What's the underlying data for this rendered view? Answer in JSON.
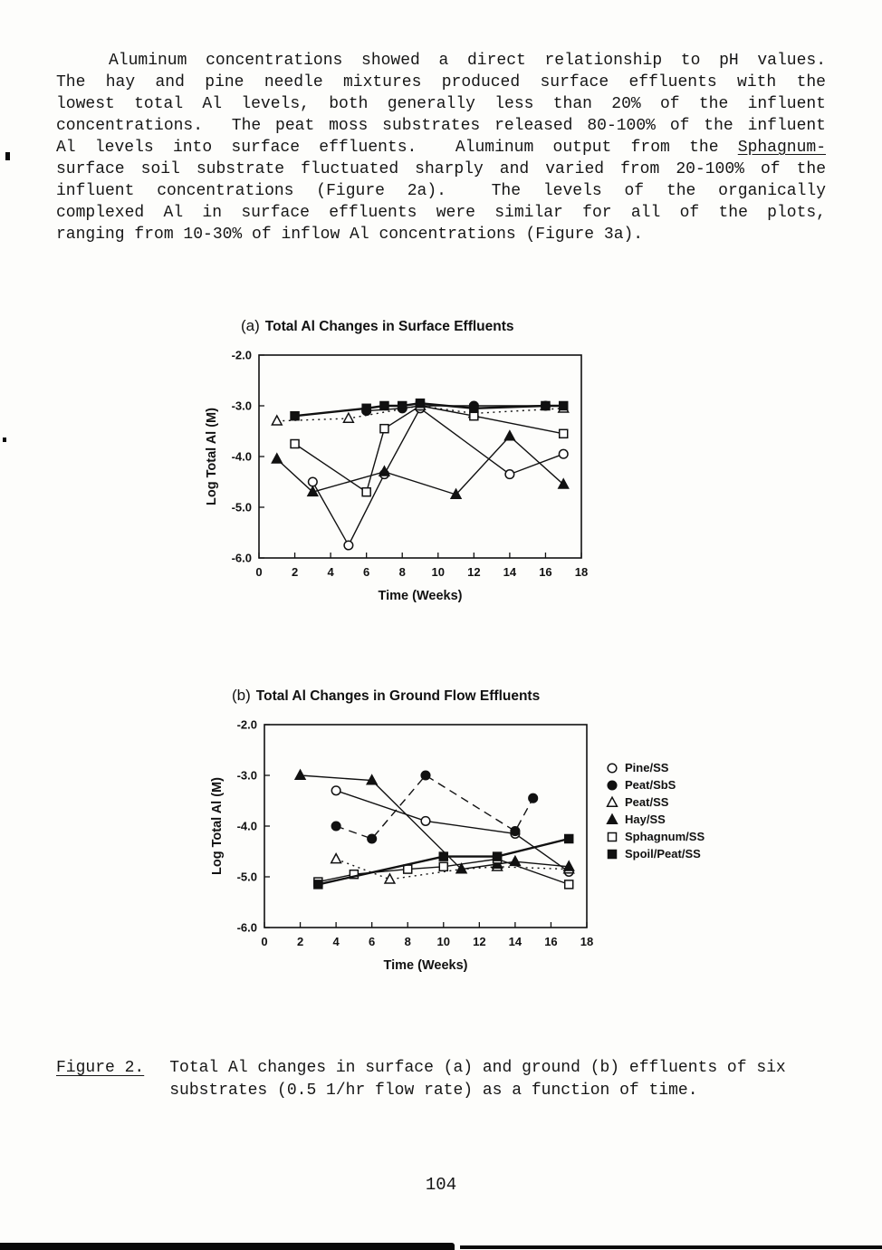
{
  "page": {
    "number": "104"
  },
  "paragraph": {
    "lines": [
      {
        "indent": true,
        "segments": [
          {
            "text": "Aluminum concentrations showed a direct relationship to pH values."
          }
        ]
      },
      {
        "segments": [
          {
            "text": "The hay and pine needle mixtures produced surface effluents with the"
          }
        ]
      },
      {
        "segments": [
          {
            "text": "lowest total Al levels, both generally less than 20% of the influent"
          }
        ]
      },
      {
        "segments": [
          {
            "text": "concentrations.  The peat moss substrates released 80-100% of the influent"
          }
        ]
      },
      {
        "segments": [
          {
            "text": "Al levels into surface effluents.  Aluminum output from the "
          },
          {
            "text": "Sphagnum-",
            "underline": true
          }
        ]
      },
      {
        "segments": [
          {
            "text": "surface soil substrate fluctuated sharply and varied from 20-100% of the"
          }
        ]
      },
      {
        "segments": [
          {
            "text": "influent concentrations (Figure 2a).  The levels of the organically"
          }
        ]
      },
      {
        "segments": [
          {
            "text": "complexed Al in surface effluents were similar for all of the plots,"
          }
        ]
      },
      {
        "last": true,
        "segments": [
          {
            "text": "ranging from 10-30% of inflow Al concentrations (Figure 3a)."
          }
        ]
      }
    ]
  },
  "caption": {
    "label": "Figure 2.",
    "line1": "Total Al changes in surface (a) and ground (b) effluents of six",
    "line2": "substrates (0.5 1/hr flow rate) as a function of time."
  },
  "chart_data": [
    {
      "type": "line",
      "panel_label": "(a)",
      "title": "Total Al Changes in Surface Effluents",
      "xlabel": "Time (Weeks)",
      "ylabel": "Log Total Al (M)",
      "xlim": [
        0,
        18
      ],
      "ylim": [
        -6.0,
        -2.0
      ],
      "xticks": [
        0,
        2,
        4,
        6,
        8,
        10,
        12,
        14,
        16,
        18
      ],
      "yticks": [
        -2.0,
        -3.0,
        -4.0,
        -5.0,
        -6.0
      ],
      "grid": false,
      "show_legend": false,
      "series": [
        {
          "name": "Pine/SS",
          "marker": "circle-open",
          "line": "solid",
          "points": [
            [
              3,
              -4.5
            ],
            [
              5,
              -5.75
            ],
            [
              7,
              -4.35
            ],
            [
              9,
              -3.05
            ],
            [
              14,
              -4.35
            ],
            [
              17,
              -3.95
            ]
          ]
        },
        {
          "name": "Peat/SbS",
          "marker": "circle-filled",
          "line": "solid",
          "points": [
            [
              6,
              -3.1
            ],
            [
              8,
              -3.05
            ],
            [
              9,
              -3.0
            ],
            [
              12,
              -3.0
            ],
            [
              16,
              -3.0
            ]
          ]
        },
        {
          "name": "Peat/SS",
          "marker": "triangle-open",
          "line": "dotted",
          "points": [
            [
              1,
              -3.3
            ],
            [
              5,
              -3.25
            ],
            [
              9,
              -3.0
            ],
            [
              12,
              -3.15
            ],
            [
              17,
              -3.05
            ]
          ]
        },
        {
          "name": "Hay/SS",
          "marker": "triangle-filled",
          "line": "solid",
          "points": [
            [
              1,
              -4.05
            ],
            [
              3,
              -4.7
            ],
            [
              7,
              -4.3
            ],
            [
              11,
              -4.75
            ],
            [
              14,
              -3.6
            ],
            [
              17,
              -4.55
            ]
          ]
        },
        {
          "name": "Sphagnum/SS",
          "marker": "square-open",
          "line": "solid",
          "points": [
            [
              2,
              -3.75
            ],
            [
              6,
              -4.7
            ],
            [
              7,
              -3.45
            ],
            [
              9,
              -3.0
            ],
            [
              12,
              -3.2
            ],
            [
              17,
              -3.55
            ]
          ]
        },
        {
          "name": "Spoil/Peat/SS",
          "marker": "square-filled",
          "line": "solid-thick",
          "points": [
            [
              2,
              -3.2
            ],
            [
              6,
              -3.05
            ],
            [
              7,
              -3.0
            ],
            [
              8,
              -3.0
            ],
            [
              9,
              -2.95
            ],
            [
              12,
              -3.05
            ],
            [
              16,
              -3.0
            ],
            [
              17,
              -3.0
            ]
          ]
        }
      ]
    },
    {
      "type": "line",
      "panel_label": "(b)",
      "title": "Total Al Changes in Ground Flow Effluents",
      "xlabel": "Time (Weeks)",
      "ylabel": "Log Total Al (M)",
      "xlim": [
        0,
        18
      ],
      "ylim": [
        -6.0,
        -2.0
      ],
      "xticks": [
        0,
        2,
        4,
        6,
        8,
        10,
        12,
        14,
        16,
        18
      ],
      "yticks": [
        -2.0,
        -3.0,
        -4.0,
        -5.0,
        -6.0
      ],
      "grid": false,
      "show_legend": true,
      "legend_position": "right",
      "series": [
        {
          "name": "Pine/SS",
          "marker": "circle-open",
          "line": "solid",
          "points": [
            [
              4,
              -3.3
            ],
            [
              9,
              -3.9
            ],
            [
              14,
              -4.15
            ],
            [
              17,
              -4.9
            ]
          ]
        },
        {
          "name": "Peat/SbS",
          "marker": "circle-filled",
          "line": "dashed",
          "points": [
            [
              4,
              -4.0
            ],
            [
              6,
              -4.25
            ],
            [
              9,
              -3.0
            ],
            [
              14,
              -4.1
            ],
            [
              15,
              -3.45
            ]
          ]
        },
        {
          "name": "Peat/SS",
          "marker": "triangle-open",
          "line": "dotted",
          "points": [
            [
              4,
              -4.65
            ],
            [
              7,
              -5.05
            ],
            [
              11,
              -4.85
            ],
            [
              13,
              -4.8
            ],
            [
              17,
              -4.85
            ]
          ]
        },
        {
          "name": "Hay/SS",
          "marker": "triangle-filled",
          "line": "solid",
          "points": [
            [
              2,
              -3.0
            ],
            [
              6,
              -3.1
            ],
            [
              11,
              -4.85
            ],
            [
              13,
              -4.75
            ],
            [
              14,
              -4.7
            ],
            [
              17,
              -4.8
            ]
          ]
        },
        {
          "name": "Sphagnum/SS",
          "marker": "square-open",
          "line": "solid",
          "points": [
            [
              3,
              -5.1
            ],
            [
              5,
              -4.95
            ],
            [
              8,
              -4.85
            ],
            [
              10,
              -4.8
            ],
            [
              13,
              -4.65
            ],
            [
              17,
              -5.15
            ]
          ]
        },
        {
          "name": "Spoil/Peat/SS",
          "marker": "square-filled",
          "line": "solid-thick",
          "points": [
            [
              3,
              -5.15
            ],
            [
              10,
              -4.6
            ],
            [
              13,
              -4.6
            ],
            [
              17,
              -4.25
            ]
          ]
        }
      ]
    }
  ]
}
